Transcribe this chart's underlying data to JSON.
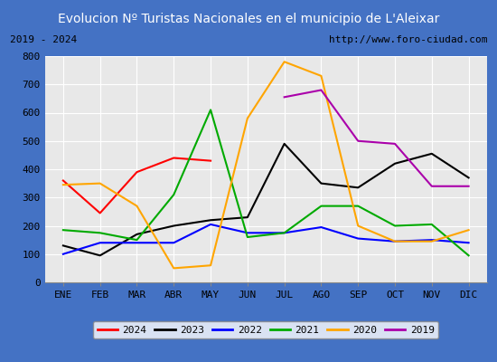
{
  "title": "Evolucion Nº Turistas Nacionales en el municipio de L'Aleixar",
  "subtitle_left": "2019 - 2024",
  "subtitle_right": "http://www.foro-ciudad.com",
  "months": [
    "ENE",
    "FEB",
    "MAR",
    "ABR",
    "MAY",
    "JUN",
    "JUL",
    "AGO",
    "SEP",
    "OCT",
    "NOV",
    "DIC"
  ],
  "series": {
    "2024": [
      360,
      245,
      390,
      440,
      430,
      null,
      null,
      null,
      null,
      null,
      null,
      null
    ],
    "2023": [
      130,
      95,
      170,
      200,
      220,
      230,
      490,
      350,
      335,
      420,
      455,
      370
    ],
    "2022": [
      100,
      140,
      140,
      140,
      205,
      175,
      175,
      195,
      155,
      145,
      150,
      140
    ],
    "2021": [
      185,
      175,
      150,
      310,
      610,
      160,
      175,
      270,
      270,
      200,
      205,
      95
    ],
    "2020": [
      345,
      350,
      270,
      50,
      60,
      580,
      780,
      730,
      200,
      145,
      145,
      185
    ],
    "2019": [
      null,
      null,
      null,
      null,
      null,
      null,
      655,
      680,
      500,
      490,
      340,
      340
    ]
  },
  "colors": {
    "2024": "#ff0000",
    "2023": "#000000",
    "2022": "#0000ff",
    "2021": "#00aa00",
    "2020": "#ffa500",
    "2019": "#aa00aa"
  },
  "ylim": [
    0,
    800
  ],
  "yticks": [
    0,
    100,
    200,
    300,
    400,
    500,
    600,
    700,
    800
  ],
  "title_bg": "#4472c4",
  "plot_bg": "#e8e8e8",
  "grid_color": "#ffffff",
  "title_color": "#ffffff",
  "title_fontsize": 10,
  "subtitle_fontsize": 8,
  "axis_fontsize": 8,
  "legend_fontsize": 8
}
